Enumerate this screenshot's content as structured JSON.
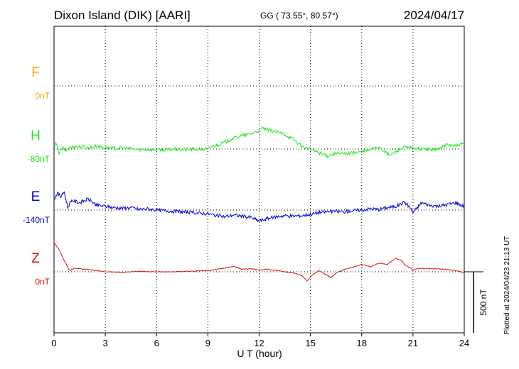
{
  "header": {
    "station": "Dixon Island (DIK)  [AARI]",
    "coords": "GG ( 73.55°,  80.57°)",
    "date": "2024/04/17"
  },
  "footer": {
    "plotted": "Plotted at 2024/04/23 21:13 UT"
  },
  "chart_data": {
    "type": "line",
    "xlabel": "U T (hour)",
    "x_ticks": [
      "0",
      "3",
      "6",
      "9",
      "12",
      "15",
      "18",
      "21",
      "24"
    ],
    "xlim": [
      0,
      24
    ],
    "scale_label": "500 nT",
    "scale_nT": 500,
    "series": [
      {
        "name": "F",
        "baseline_label": "0nT",
        "color": "#f0a800",
        "x": [],
        "y": []
      },
      {
        "name": "H",
        "baseline_label": "-80nT",
        "color": "#22e822",
        "x": [
          0,
          0.1,
          0.2,
          0.3,
          0.5,
          0.7,
          1.0,
          1.5,
          2,
          2.5,
          3,
          3.5,
          4,
          4.5,
          5,
          5.5,
          6,
          6.5,
          7,
          7.5,
          8,
          8.5,
          9,
          9.2,
          9.5,
          10,
          10.5,
          11,
          11.5,
          12,
          12.2,
          12.5,
          13,
          13.5,
          14,
          14.5,
          15,
          15.5,
          16,
          16.2,
          16.5,
          17,
          17.5,
          18,
          18.5,
          19,
          19.5,
          19.7,
          20,
          20.5,
          21,
          21.5,
          22,
          22.5,
          23,
          23.5,
          24
        ],
        "y": [
          10,
          40,
          20,
          -30,
          10,
          -10,
          15,
          20,
          10,
          25,
          10,
          5,
          10,
          0,
          -5,
          -3,
          -5,
          -8,
          -2,
          -5,
          -2,
          -3,
          0,
          20,
          30,
          55,
          90,
          110,
          125,
          150,
          175,
          155,
          140,
          120,
          80,
          20,
          0,
          -30,
          -60,
          -45,
          -35,
          -40,
          -30,
          -25,
          -5,
          20,
          -40,
          -50,
          -20,
          15,
          5,
          0,
          -5,
          0,
          35,
          25,
          40
        ]
      },
      {
        "name": "E",
        "baseline_label": "-140nT",
        "color": "#0000dd",
        "x": [
          0,
          0.2,
          0.4,
          0.6,
          0.8,
          1.0,
          1.5,
          2,
          2.5,
          3,
          3.5,
          4,
          4.5,
          5,
          5.5,
          6,
          7,
          8,
          9,
          9.5,
          10,
          10.5,
          11,
          11.5,
          12,
          12.5,
          13,
          13.5,
          14,
          14.5,
          15,
          15.5,
          16,
          16.5,
          17,
          17.5,
          18,
          18.5,
          19,
          19.5,
          20,
          20.5,
          20.8,
          21,
          21.5,
          22,
          22.5,
          23,
          23.5,
          24
        ],
        "y": [
          90,
          140,
          110,
          150,
          20,
          80,
          60,
          90,
          40,
          30,
          20,
          15,
          20,
          5,
          10,
          0,
          -10,
          -20,
          -30,
          -45,
          -55,
          -40,
          -50,
          -60,
          -90,
          -70,
          -55,
          -45,
          -50,
          -45,
          -35,
          -20,
          -15,
          -10,
          -15,
          -5,
          0,
          10,
          5,
          20,
          30,
          65,
          25,
          -20,
          60,
          40,
          30,
          45,
          60,
          30
        ]
      },
      {
        "name": "Z",
        "baseline_label": "0nT",
        "color": "#e01010",
        "x": [
          0,
          0.3,
          0.6,
          0.9,
          1.2,
          1.5,
          2,
          2.5,
          3,
          4,
          5,
          6,
          7,
          8,
          9,
          10,
          10.5,
          11,
          11.5,
          12,
          12.5,
          13,
          13.5,
          14,
          14.5,
          14.8,
          15,
          15.5,
          16,
          16.2,
          16.5,
          17,
          17.5,
          18,
          18.5,
          19,
          19.5,
          20,
          20.3,
          20.5,
          21,
          21.5,
          22,
          23,
          24
        ],
        "y": [
          240,
          180,
          90,
          10,
          30,
          25,
          20,
          10,
          0,
          -5,
          5,
          0,
          0,
          5,
          10,
          30,
          45,
          20,
          25,
          15,
          20,
          10,
          0,
          -10,
          -30,
          -75,
          -40,
          10,
          -30,
          -50,
          -10,
          20,
          40,
          60,
          40,
          70,
          60,
          110,
          95,
          60,
          15,
          30,
          25,
          20,
          -5
        ]
      }
    ]
  }
}
